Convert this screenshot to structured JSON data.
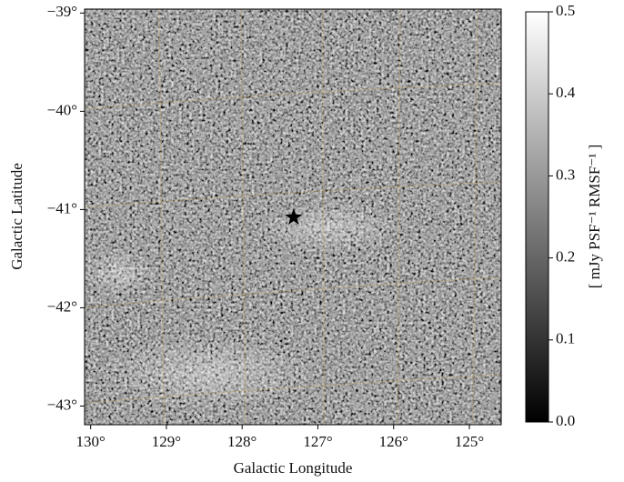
{
  "chart_data": {
    "type": "image",
    "xlabel": "Galactic Longitude",
    "ylabel": "Galactic Latitude",
    "xlim": [
      130.08,
      124.58
    ],
    "ylim": [
      -43.19,
      -38.96
    ],
    "xticks": [
      {
        "value": 130,
        "label": "130°"
      },
      {
        "value": 129,
        "label": "129°"
      },
      {
        "value": 128,
        "label": "128°"
      },
      {
        "value": 127,
        "label": "127°"
      },
      {
        "value": 126,
        "label": "126°"
      },
      {
        "value": 125,
        "label": "125°"
      }
    ],
    "yticks": [
      {
        "value": -39,
        "label": "−39°"
      },
      {
        "value": -40,
        "label": "−40°"
      },
      {
        "value": -41,
        "label": "−41°"
      },
      {
        "value": -42,
        "label": "−42°"
      },
      {
        "value": -43,
        "label": "−43°"
      }
    ],
    "marker": {
      "x": 127.32,
      "y": -41.08
    },
    "colorbar": {
      "label": "[ mJy PSF⁻¹ RMSF⁻¹ ]",
      "lim": [
        0,
        0.5
      ],
      "ticks": [
        {
          "value": 0,
          "label": "0.0"
        },
        0.1,
        0.2,
        0.3,
        0.4,
        0.5
      ]
    }
  }
}
